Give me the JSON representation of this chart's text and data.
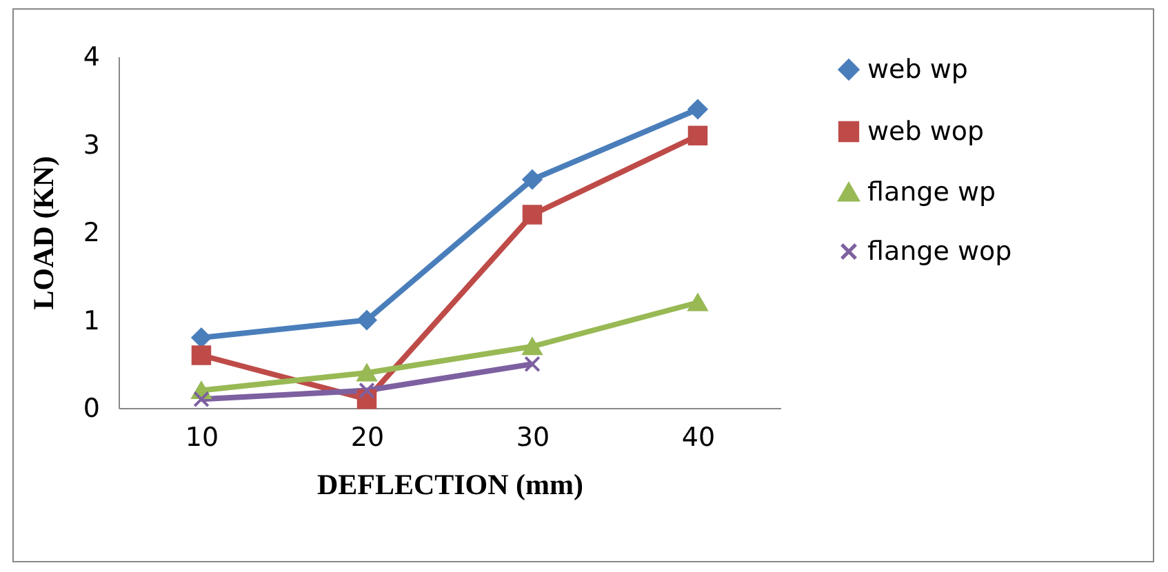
{
  "chart_data": {
    "type": "line",
    "xlabel": "DEFLECTION (mm)",
    "ylabel": "LOAD (KN)",
    "categories": [
      "10",
      "20",
      "30",
      "40"
    ],
    "series": [
      {
        "name": "web wp",
        "color": "#4a7ebb",
        "marker": "diamond",
        "values": [
          0.8,
          1.0,
          2.6,
          3.4
        ]
      },
      {
        "name": "web wop",
        "color": "#be4b48",
        "marker": "square",
        "values": [
          0.6,
          0.1,
          2.2,
          3.1
        ]
      },
      {
        "name": "flange wp",
        "color": "#98b954",
        "marker": "triangle",
        "values": [
          0.2,
          0.4,
          0.7,
          1.2
        ]
      },
      {
        "name": "flange wop",
        "color": "#7d60a0",
        "marker": "cross",
        "values": [
          0.1,
          0.2,
          0.5,
          null
        ]
      }
    ],
    "ylim": [
      0,
      4
    ],
    "yticks": [
      0,
      1,
      2,
      3,
      4
    ],
    "grid": false,
    "legend": "right",
    "line_style": "solid"
  }
}
